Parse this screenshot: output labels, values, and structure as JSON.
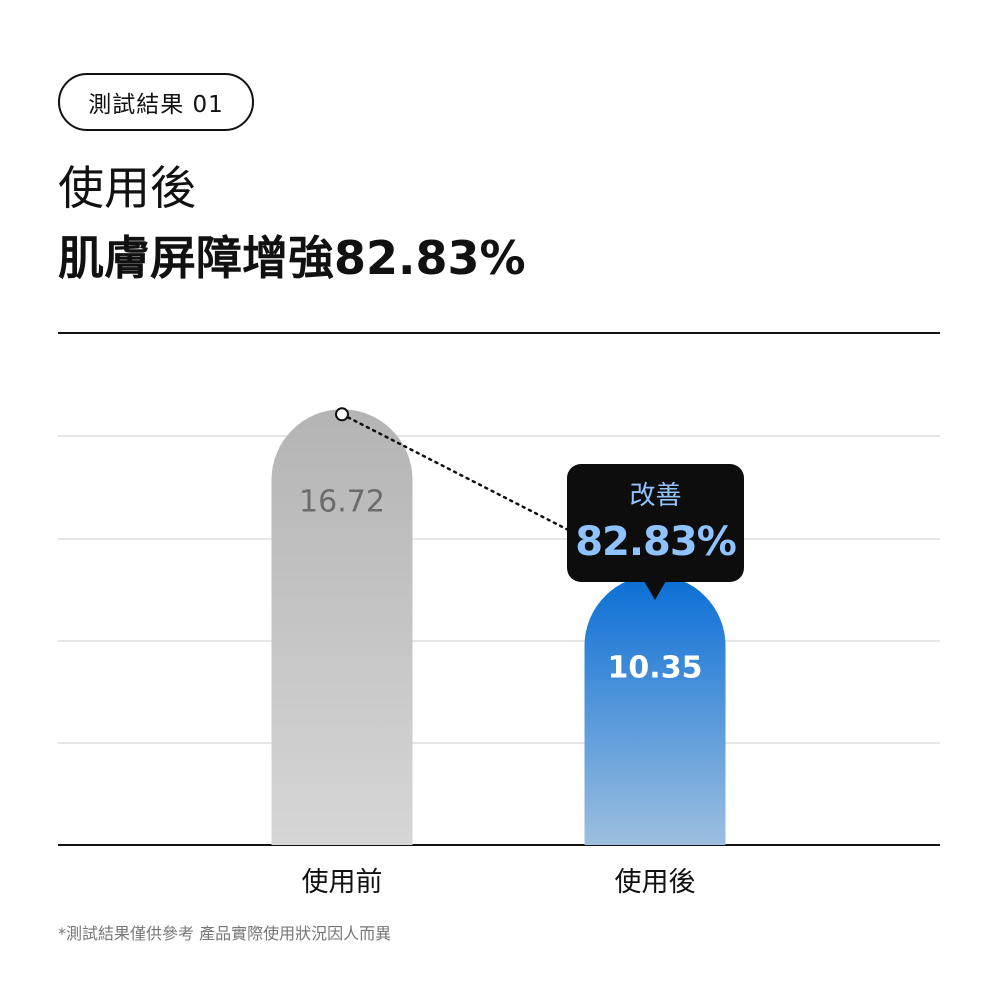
{
  "badge": "測試結果 01",
  "title_line1": "使用後",
  "title_line2": "肌膚屏障增強82.83%",
  "callout": {
    "label": "改善",
    "value": "82.83%"
  },
  "footnote": "*測試結果僅供參考 產品實際使用狀況因人而異",
  "colors": {
    "before_bar_top": "#b4b4b4",
    "before_bar_bottom": "#d6d6d6",
    "after_bar_top": "#0a6ed6",
    "after_bar_bottom": "#9dbfdf",
    "grid": "#cccccc",
    "axis": "#111111",
    "callout_text": "#8fc3ff"
  },
  "chart_data": {
    "type": "bar",
    "categories": [
      "使用前",
      "使用後"
    ],
    "values": [
      16.72,
      10.35
    ],
    "value_labels": [
      "16.72",
      "10.35"
    ],
    "title": "",
    "xlabel": "",
    "ylabel": "",
    "ylim": [
      0,
      17
    ],
    "grid": true,
    "connector": "dotted line between bar tops",
    "annotation": "改善 82.83%"
  }
}
